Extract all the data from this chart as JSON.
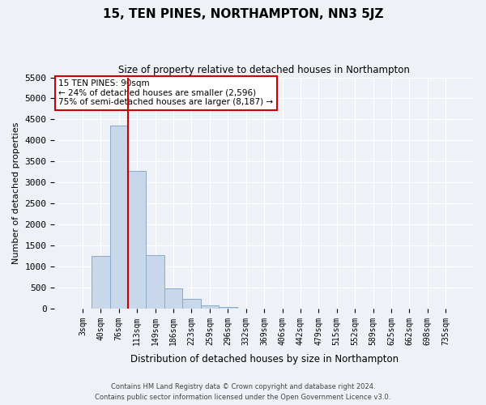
{
  "title": "15, TEN PINES, NORTHAMPTON, NN3 5JZ",
  "subtitle": "Size of property relative to detached houses in Northampton",
  "xlabel": "Distribution of detached houses by size in Northampton",
  "ylabel": "Number of detached properties",
  "bar_labels": [
    "3sqm",
    "40sqm",
    "76sqm",
    "113sqm",
    "149sqm",
    "186sqm",
    "223sqm",
    "259sqm",
    "296sqm",
    "332sqm",
    "369sqm",
    "406sqm",
    "442sqm",
    "479sqm",
    "515sqm",
    "552sqm",
    "589sqm",
    "625sqm",
    "662sqm",
    "698sqm",
    "735sqm"
  ],
  "bar_values": [
    0,
    1250,
    4350,
    3270,
    1270,
    480,
    230,
    70,
    30,
    0,
    0,
    0,
    0,
    0,
    0,
    0,
    0,
    0,
    0,
    0,
    0
  ],
  "bar_color": "#c8d8ea",
  "bar_edgecolor": "#88aac8",
  "ylim": [
    0,
    5500
  ],
  "yticks": [
    0,
    500,
    1000,
    1500,
    2000,
    2500,
    3000,
    3500,
    4000,
    4500,
    5000,
    5500
  ],
  "vline_color": "#cc0000",
  "annotation_text": "15 TEN PINES: 90sqm\n← 24% of detached houses are smaller (2,596)\n75% of semi-detached houses are larger (8,187) →",
  "annotation_box_color": "white",
  "annotation_box_edgecolor": "#cc0000",
  "footer1": "Contains HM Land Registry data © Crown copyright and database right 2024.",
  "footer2": "Contains public sector information licensed under the Open Government Licence v3.0.",
  "background_color": "#eef2f7",
  "grid_color": "white"
}
